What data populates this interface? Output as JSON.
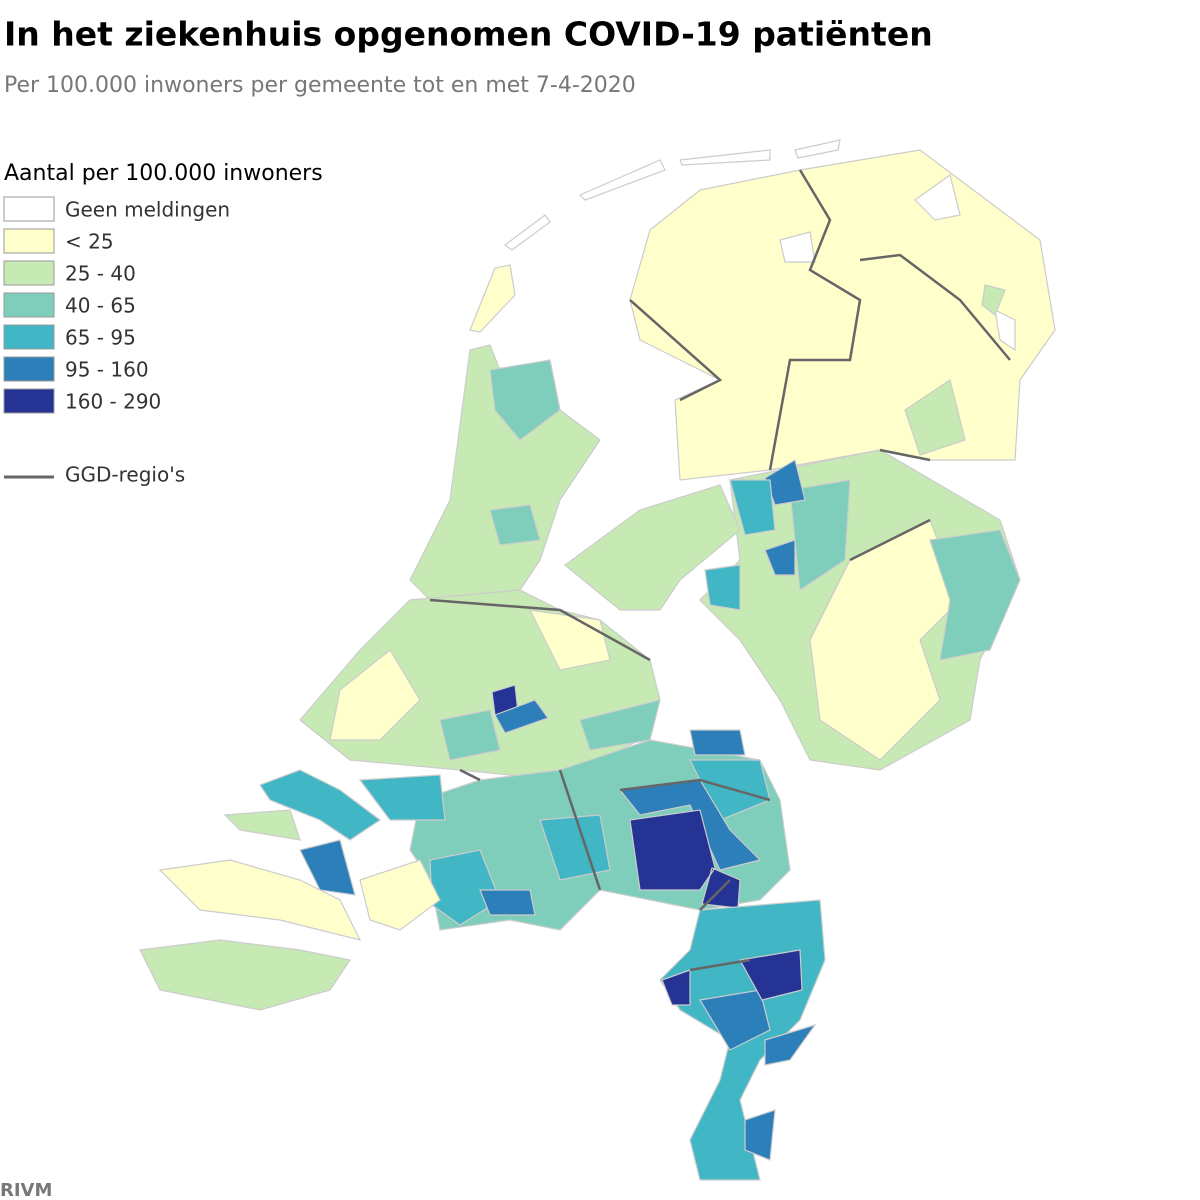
{
  "title": "In het ziekenhuis opgenomen COVID-19 patiënten",
  "subtitle": "Per 100.000 inwoners per gemeente tot en met 7-4-2020",
  "legend": {
    "title": "Aantal per 100.000 inwoners",
    "items": [
      {
        "label": "Geen meldingen",
        "color": "#ffffff"
      },
      {
        "label": "< 25",
        "color": "#ffffcc"
      },
      {
        "label": "25 - 40",
        "color": "#c7e9b4"
      },
      {
        "label": "40 - 65",
        "color": "#7fcdbb"
      },
      {
        "label": "65 - 95",
        "color": "#41b6c4"
      },
      {
        "label": "95 - 160",
        "color": "#2c7fb8"
      },
      {
        "label": "160 - 290",
        "color": "#253494"
      }
    ],
    "boundary": {
      "label": "GGD-regio's",
      "color": "#666666"
    }
  },
  "source": "RIVM"
}
